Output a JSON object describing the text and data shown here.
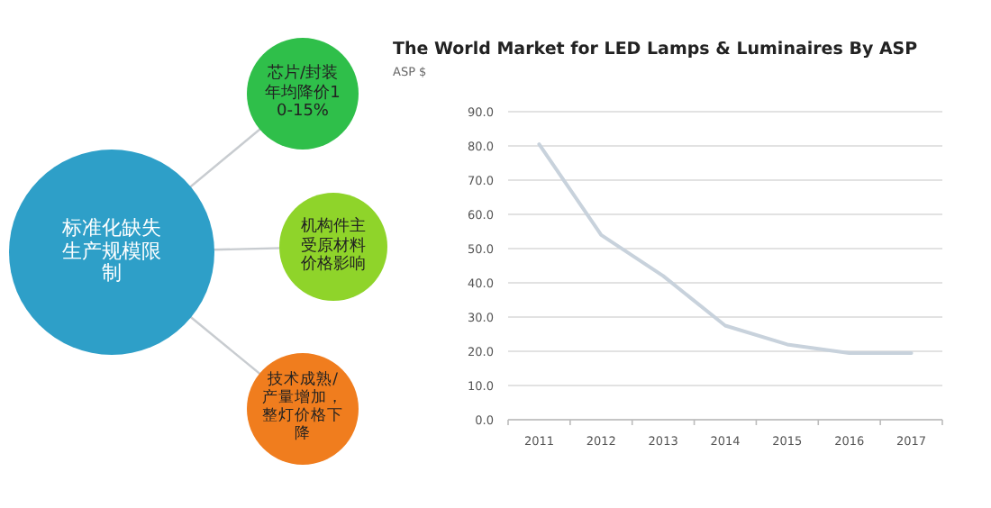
{
  "chart_data": [
    {
      "type": "other",
      "annotations": [
        "标准化缺失生产规模限制",
        "芯片/封装年均降价10-15%",
        "机构件主受原材料价格影响",
        "技术成熟/产量增加，整灯价格下降"
      ],
      "colors": [
        "#2e9fc8",
        "#2fbf4a",
        "#8fd42a",
        "#f07d1e"
      ]
    },
    {
      "type": "line",
      "title": "The World Market for  LED Lamps & Luminaires By ASP",
      "ylabel": "ASP $",
      "categories": [
        "2011",
        "2012",
        "2013",
        "2014",
        "2015",
        "2016",
        "2017"
      ],
      "series": [
        {
          "color": "#c8d2dc",
          "values": [
            80.5,
            54,
            42,
            27.5,
            22,
            19.5,
            19.5
          ]
        }
      ],
      "ylim": [
        0,
        90
      ],
      "yticks": [
        {
          "value": 0,
          "label": "0.0"
        },
        {
          "value": 10,
          "label": "10.0"
        },
        {
          "value": 20,
          "label": "20.0"
        },
        {
          "value": 30,
          "label": "30.0"
        },
        {
          "value": 40,
          "label": "40.0"
        },
        {
          "value": 50,
          "label": "50.0"
        },
        {
          "value": 60,
          "label": "60.0"
        },
        {
          "value": 70,
          "label": "70.0"
        },
        {
          "value": 80,
          "label": "80.0"
        },
        {
          "value": 90,
          "label": "90.0"
        }
      ],
      "grid": "y",
      "marker": "none",
      "line_style": "solid"
    }
  ]
}
